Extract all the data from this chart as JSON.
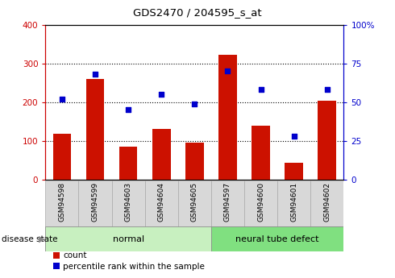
{
  "title": "GDS2470 / 204595_s_at",
  "categories": [
    "GSM94598",
    "GSM94599",
    "GSM94603",
    "GSM94604",
    "GSM94605",
    "GSM94597",
    "GSM94600",
    "GSM94601",
    "GSM94602"
  ],
  "count_values": [
    118,
    260,
    85,
    130,
    95,
    322,
    138,
    42,
    204
  ],
  "percentile_values": [
    52,
    68,
    45,
    55,
    49,
    70,
    58,
    28,
    58
  ],
  "groups": [
    {
      "label": "normal",
      "start": 0,
      "end": 4,
      "color": "#c8f0c0"
    },
    {
      "label": "neural tube defect",
      "start": 5,
      "end": 8,
      "color": "#80e080"
    }
  ],
  "left_axis_color": "#cc0000",
  "right_axis_color": "#0000cc",
  "bar_color": "#cc1100",
  "dot_color": "#0000cc",
  "left_ylim": [
    0,
    400
  ],
  "right_ylim": [
    0,
    100
  ],
  "left_yticks": [
    0,
    100,
    200,
    300,
    400
  ],
  "right_yticks": [
    0,
    25,
    50,
    75,
    100
  ],
  "right_yticklabels": [
    "0",
    "25",
    "50",
    "75",
    "100%"
  ],
  "grid_levels": [
    100,
    200,
    300
  ],
  "tick_bg_color": "#d8d8d8",
  "legend_count_label": "count",
  "legend_pct_label": "percentile rank within the sample",
  "disease_state_label": "disease state",
  "bar_width": 0.55
}
